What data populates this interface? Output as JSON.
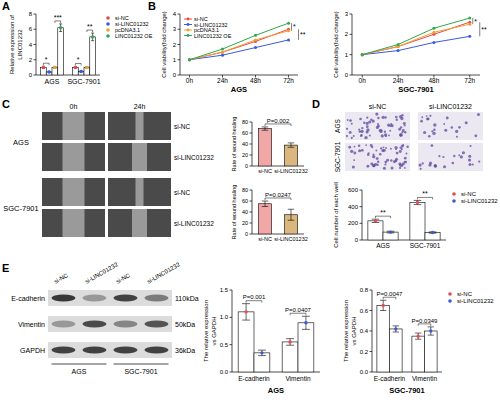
{
  "panel_letters": [
    "A",
    "B",
    "C",
    "D",
    "E"
  ],
  "chart_data": [
    {
      "type": "bar",
      "categories": [
        "AGS",
        "SGC-7901"
      ],
      "y_label": [
        "Relative expression of",
        "LINC01232"
      ],
      "ylim": [
        0,
        8
      ],
      "yticks": [
        0,
        2,
        4,
        6,
        8
      ],
      "legend": "right",
      "marker": "circle",
      "series": [
        {
          "name": "si-NC",
          "color": "#e8484f",
          "values": [
            1.0,
            1.0
          ],
          "errors": [
            0.15,
            0.12
          ]
        },
        {
          "name": "si-LINC01232",
          "color": "#3a5bd9",
          "values": [
            0.4,
            0.45
          ],
          "errors": [
            0.08,
            0.1
          ]
        },
        {
          "name": "pcDNA3.1",
          "color": "#f0a030",
          "values": [
            1.0,
            1.0
          ],
          "errors": [
            0.12,
            0.1
          ]
        },
        {
          "name": "LINC01232 OE",
          "color": "#2fa84f",
          "values": [
            6.2,
            5.0
          ],
          "errors": [
            0.5,
            0.5
          ]
        }
      ],
      "annotations": [
        {
          "text": "*",
          "category": 0,
          "series": [
            0,
            1
          ]
        },
        {
          "text": "***",
          "category": 0,
          "series": [
            2,
            3
          ]
        },
        {
          "text": "*",
          "category": 1,
          "series": [
            0,
            1
          ]
        },
        {
          "text": "**",
          "category": 1,
          "series": [
            2,
            3
          ]
        }
      ]
    },
    {
      "type": "line",
      "title": "AGS",
      "categories": [
        "0h",
        "24h",
        "48h",
        "72h"
      ],
      "y_label": "Cell viability(fold change)",
      "ylim": [
        0,
        4
      ],
      "yticks": [
        0,
        1,
        2,
        3,
        4
      ],
      "legend": "upper left",
      "marker": "circle",
      "series": [
        {
          "name": "si-NC",
          "color": "#e8484f",
          "values": [
            1.0,
            1.5,
            2.2,
            3.0
          ]
        },
        {
          "name": "si-LINC01232",
          "color": "#3a5bd9",
          "values": [
            1.0,
            1.3,
            1.8,
            2.3
          ]
        },
        {
          "name": "pcDNA3.1",
          "color": "#f0a030",
          "values": [
            1.0,
            1.5,
            2.3,
            2.9
          ]
        },
        {
          "name": "LINC01232 OE",
          "color": "#2fa84f",
          "values": [
            1.0,
            1.7,
            2.6,
            3.4
          ]
        }
      ],
      "annotations": [
        {
          "text": "*",
          "series": [
            2,
            3
          ]
        },
        {
          "text": "**",
          "series": [
            0,
            1
          ]
        }
      ]
    },
    {
      "type": "line",
      "title": "SGC-7901",
      "categories": [
        "0h",
        "24h",
        "48h",
        "72h"
      ],
      "y_label": "Cell viability(fold change)",
      "ylim": [
        0,
        3
      ],
      "yticks": [
        0,
        1,
        2,
        3
      ],
      "marker": "circle",
      "series": [
        {
          "name": "si-NC",
          "color": "#e8484f",
          "values": [
            1.0,
            1.4,
            2.0,
            2.6
          ]
        },
        {
          "name": "si-LINC01232",
          "color": "#3a5bd9",
          "values": [
            1.0,
            1.2,
            1.6,
            1.9
          ]
        },
        {
          "name": "pcDNA3.1",
          "color": "#f0a030",
          "values": [
            1.0,
            1.4,
            2.1,
            2.5
          ]
        },
        {
          "name": "LINC01232 OE",
          "color": "#2fa84f",
          "values": [
            1.0,
            1.5,
            2.3,
            2.8
          ]
        }
      ],
      "annotations": [
        {
          "text": "*",
          "series": [
            2,
            3
          ]
        },
        {
          "text": "**",
          "series": [
            0,
            1
          ]
        }
      ]
    },
    {
      "type": "bar",
      "categories": [
        "si-NC",
        "si-LINC01232"
      ],
      "values": [
        68,
        38
      ],
      "errors": [
        3,
        4
      ],
      "colors": [
        "#f2a7a7",
        "#d9b77e"
      ],
      "ylim": [
        0,
        80
      ],
      "yticks": [
        0,
        20,
        40,
        60,
        80
      ],
      "y_label": "Rate of wound healing",
      "annotations": [
        {
          "text": "P=0.002",
          "categories": [
            0,
            1
          ]
        }
      ]
    },
    {
      "type": "bar",
      "categories": [
        "si-NC",
        "si-LINC01232"
      ],
      "values": [
        55,
        35
      ],
      "errors": [
        5,
        10
      ],
      "colors": [
        "#f2a7a7",
        "#d9b77e"
      ],
      "ylim": [
        0,
        80
      ],
      "yticks": [
        0,
        20,
        40,
        60,
        80
      ],
      "y_label": "Rate of wound healing",
      "annotations": [
        {
          "text": "P=0.0247",
          "categories": [
            0,
            1
          ]
        }
      ]
    },
    {
      "type": "bar",
      "categories": [
        "AGS",
        "SGC-7901"
      ],
      "y_label": "Cell number of each well",
      "ylim": [
        0,
        600
      ],
      "yticks": [
        0,
        200,
        400,
        600
      ],
      "legend": "right",
      "marker": "circle",
      "series": [
        {
          "name": "si-NC",
          "color": "#e8484f",
          "values": [
            230,
            450
          ],
          "errors": [
            20,
            25
          ]
        },
        {
          "name": "si-LINC01232",
          "color": "#3a5bd9",
          "values": [
            95,
            90
          ],
          "errors": [
            10,
            8
          ]
        }
      ],
      "annotations": [
        {
          "text": "**",
          "category": 0,
          "series": [
            0,
            1
          ]
        },
        {
          "text": "**",
          "category": 1,
          "series": [
            0,
            1
          ]
        }
      ]
    },
    {
      "type": "bar",
      "title": "AGS",
      "categories": [
        "E-cadherin",
        "Vimentin"
      ],
      "y_label": [
        "The relative expression",
        "vs GAPDH"
      ],
      "ylim": [
        0,
        1.5
      ],
      "yticks": [
        {
          "value": 0,
          "label": "0.0"
        },
        0.5,
        {
          "value": 1,
          "label": "1.0"
        },
        1.5
      ],
      "marker": "circle",
      "series": [
        {
          "name": "si-NC",
          "color": "#e8484f",
          "values": [
            1.1,
            0.55
          ],
          "errors": [
            0.15,
            0.06
          ]
        },
        {
          "name": "si-LINC01232",
          "color": "#3a5bd9",
          "values": [
            0.35,
            0.9
          ],
          "errors": [
            0.05,
            0.12
          ]
        }
      ],
      "annotations": [
        {
          "text": "P=0.001",
          "category": 0,
          "series": [
            0,
            1
          ]
        },
        {
          "text": "P=0.0407",
          "category": 1,
          "series": [
            0,
            1
          ]
        }
      ]
    },
    {
      "type": "bar",
      "title": "SGC-7901",
      "categories": [
        "E-cadherin",
        "Vimentin"
      ],
      "y_label": [
        "The relative expression",
        "vs GAPDH"
      ],
      "ylim": [
        0,
        0.8
      ],
      "yticks": [
        {
          "value": 0,
          "label": "0.0"
        },
        0.2,
        0.4,
        0.6,
        0.8
      ],
      "legend": "right",
      "marker": "circle",
      "series": [
        {
          "name": "si-NC",
          "color": "#e8484f",
          "values": [
            0.65,
            0.35
          ],
          "errors": [
            0.05,
            0.03
          ]
        },
        {
          "name": "si-LINC01232",
          "color": "#3a5bd9",
          "values": [
            0.42,
            0.4
          ],
          "errors": [
            0.03,
            0.04
          ]
        }
      ],
      "annotations": [
        {
          "text": "P=0.0047",
          "category": 0,
          "series": [
            0,
            1
          ]
        },
        {
          "text": "P=0.0349",
          "category": 1,
          "series": [
            0,
            1
          ]
        }
      ]
    }
  ],
  "wound_healing": {
    "time_labels": [
      "0h",
      "24h"
    ],
    "rows": [
      {
        "cell_line": "AGS",
        "groups": [
          "si-NC",
          "si-LINC01232"
        ]
      },
      {
        "cell_line": "SGC-7901",
        "groups": [
          "si-NC",
          "si-LINC01232"
        ]
      }
    ]
  },
  "transwell": {
    "columns": [
      "si-NC",
      "si-LINC01232"
    ],
    "rows": [
      "AGS",
      "SGC-7901"
    ]
  },
  "western_blot": {
    "lanes": [
      "si-NC",
      "si-LINC01232",
      "si-NC",
      "si-LINC01232"
    ],
    "cell_lines": [
      "AGS",
      "SGC-7901"
    ],
    "proteins": [
      {
        "name": "E-cadherin",
        "size": "110kDa"
      },
      {
        "name": "Vimentin",
        "size": "50kDa"
      },
      {
        "name": "GAPDH",
        "size": "36kDa"
      }
    ]
  }
}
